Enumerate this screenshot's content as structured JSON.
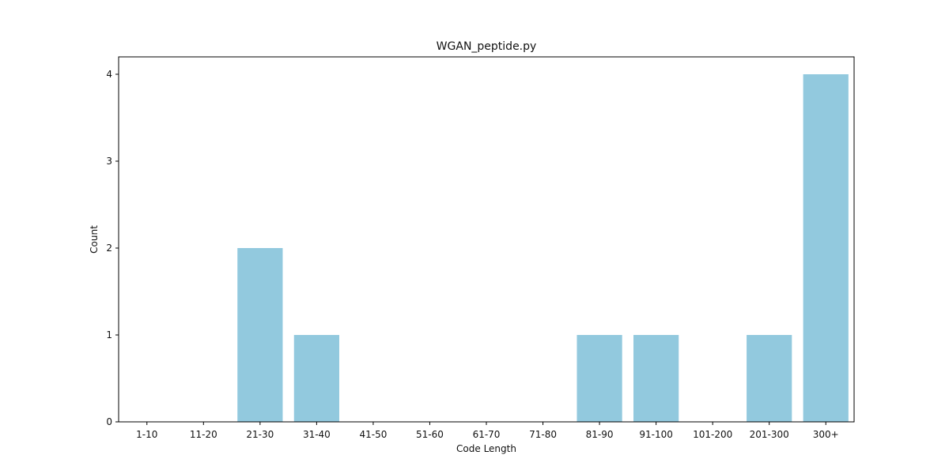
{
  "chart_data": {
    "type": "bar",
    "title": "WGAN_peptide.py",
    "xlabel": "Code Length",
    "ylabel": "Count",
    "categories": [
      "1-10",
      "11-20",
      "21-30",
      "31-40",
      "41-50",
      "51-60",
      "61-70",
      "71-80",
      "81-90",
      "91-100",
      "101-200",
      "201-300",
      "300+"
    ],
    "values": [
      0,
      0,
      2,
      1,
      0,
      0,
      0,
      0,
      1,
      1,
      0,
      1,
      4
    ],
    "yticks": [
      "0",
      "1",
      "2",
      "3",
      "4"
    ],
    "ylim": [
      0,
      4.2
    ],
    "grid": false,
    "bar_color": "#92c9de"
  }
}
